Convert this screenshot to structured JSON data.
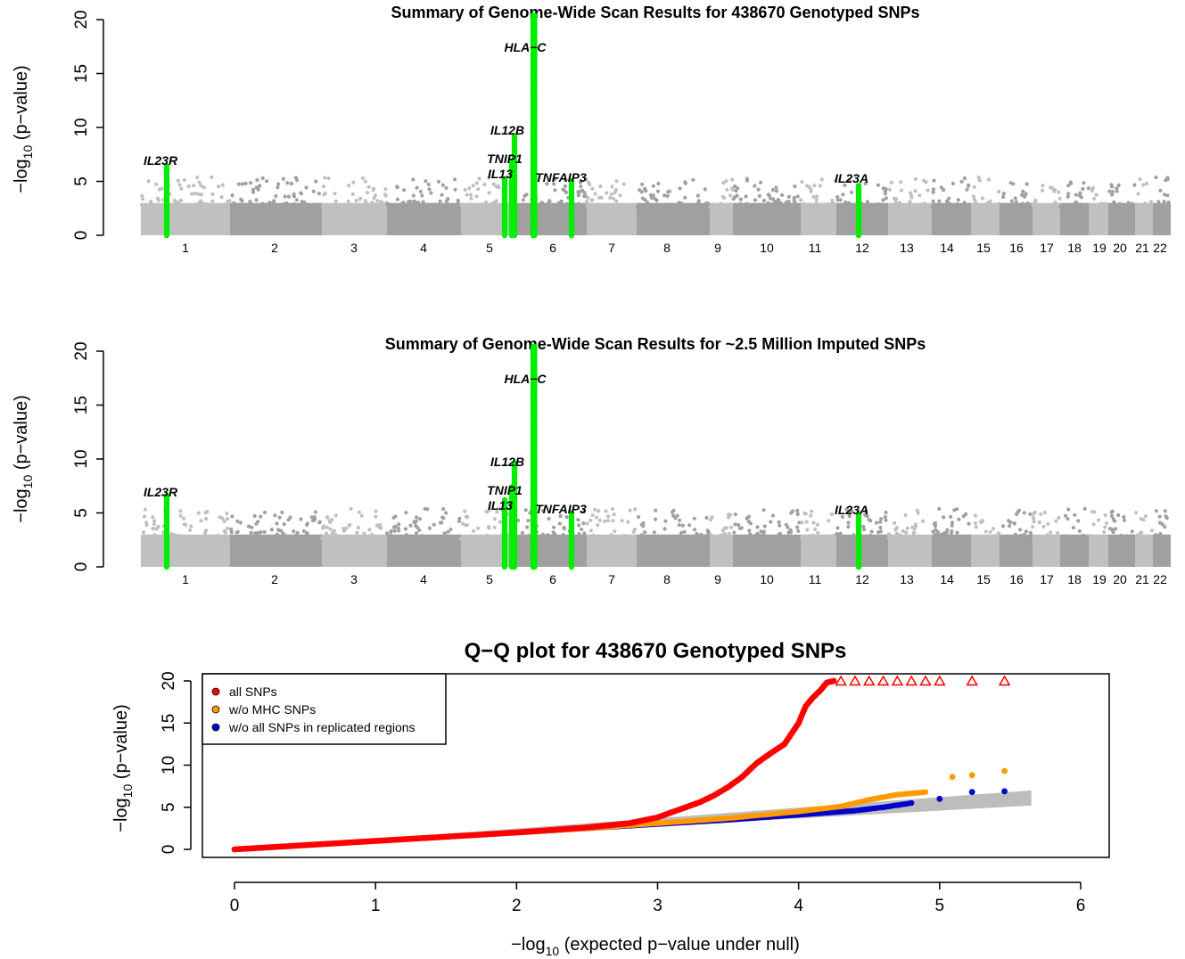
{
  "colors": {
    "chrom_light": "#c0c0c0",
    "chrom_dark": "#a0a0a0",
    "highlight": "#00ee00",
    "all_snps": "#ff0000",
    "wo_mhc": "#ff9900",
    "wo_replicated": "#0000cc",
    "null_band": "#bdbdbd"
  },
  "chart_data": [
    {
      "type": "scatter",
      "title": "Summary of Genome-Wide Scan Results for 438670 Genotyped SNPs",
      "ylabel": "−log10 (p−value)",
      "ylabel_main": "−log",
      "ylabel_sub": "10",
      "ylabel_tail": " (p−value)",
      "ylim": [
        0,
        20.5
      ],
      "yticks": [
        0,
        5,
        10,
        15,
        20
      ],
      "chromosomes": [
        "1",
        "2",
        "3",
        "4",
        "5",
        "6",
        "7",
        "8",
        "9",
        "10",
        "11",
        "12",
        "13",
        "14",
        "15",
        "16",
        "17",
        "18",
        "19",
        "20",
        "21",
        "22"
      ],
      "peaks": [
        {
          "gene": "IL23R",
          "chrom": "1",
          "max": 6.6
        },
        {
          "gene": "IL13",
          "chrom": "5",
          "max": 5.4
        },
        {
          "gene": "TNIP1",
          "chrom": "5",
          "max": 7.0
        },
        {
          "gene": "IL12B",
          "chrom": "5",
          "max": 9.3
        },
        {
          "gene": "HLA−C",
          "chrom": "6",
          "max": 20.5
        },
        {
          "gene": "TNFAIP3",
          "chrom": "6",
          "max": 5.1
        },
        {
          "gene": "IL23A",
          "chrom": "12",
          "max": 4.8
        }
      ]
    },
    {
      "type": "scatter",
      "title": "Summary of Genome-Wide Scan Results for ~2.5 Million Imputed SNPs",
      "ylabel": "−log10 (p−value)",
      "ylabel_main": "−log",
      "ylabel_sub": "10",
      "ylabel_tail": " (p−value)",
      "ylim": [
        0,
        20.5
      ],
      "yticks": [
        0,
        5,
        10,
        15,
        20
      ],
      "chromosomes": [
        "1",
        "2",
        "3",
        "4",
        "5",
        "6",
        "7",
        "8",
        "9",
        "10",
        "11",
        "12",
        "13",
        "14",
        "15",
        "16",
        "17",
        "18",
        "19",
        "20",
        "21",
        "22"
      ],
      "peaks": [
        {
          "gene": "IL23R",
          "chrom": "1",
          "max": 6.8
        },
        {
          "gene": "IL13",
          "chrom": "5",
          "max": 6.3
        },
        {
          "gene": "TNIP1",
          "chrom": "5",
          "max": 7.5
        },
        {
          "gene": "IL12B",
          "chrom": "5",
          "max": 9.6
        },
        {
          "gene": "HLA−C",
          "chrom": "6",
          "max": 20.5
        },
        {
          "gene": "TNFAIP3",
          "chrom": "6",
          "max": 5.2
        },
        {
          "gene": "IL23A",
          "chrom": "12",
          "max": 5.0
        }
      ]
    },
    {
      "type": "scatter",
      "title": "Q−Q plot for 438670 Genotyped SNPs",
      "xlabel": "−log10 (expected p−value under null)",
      "xlabel_main": "−log",
      "xlabel_sub": "10",
      "xlabel_tail": " (expected p−value under null)",
      "ylabel": "−log10 (p−value)",
      "ylabel_main": "−log",
      "ylabel_sub": "10",
      "ylabel_tail": " (p−value)",
      "xlim": [
        0,
        6
      ],
      "ylim": [
        0,
        20
      ],
      "xticks": [
        0,
        1,
        2,
        3,
        4,
        5,
        6
      ],
      "yticks": [
        0,
        5,
        10,
        15,
        20
      ],
      "legend_position": "top-left",
      "series": [
        {
          "name": "all SNPs",
          "color": "#ff0000",
          "points": [
            [
              0,
              0
            ],
            [
              0.5,
              0.5
            ],
            [
              1,
              1
            ],
            [
              1.5,
              1.5
            ],
            [
              2,
              2
            ],
            [
              2.5,
              2.6
            ],
            [
              2.8,
              3.1
            ],
            [
              3.0,
              3.8
            ],
            [
              3.1,
              4.4
            ],
            [
              3.2,
              5.0
            ],
            [
              3.3,
              5.6
            ],
            [
              3.4,
              6.4
            ],
            [
              3.5,
              7.4
            ],
            [
              3.6,
              8.6
            ],
            [
              3.7,
              10.2
            ],
            [
              3.8,
              11.4
            ],
            [
              3.9,
              12.5
            ],
            [
              4.0,
              15.0
            ],
            [
              4.05,
              17.0
            ],
            [
              4.1,
              18.0
            ],
            [
              4.15,
              18.8
            ],
            [
              4.2,
              19.8
            ],
            [
              4.25,
              20
            ]
          ],
          "censored_points": [
            [
              4.3,
              20
            ],
            [
              4.4,
              20
            ],
            [
              4.5,
              20
            ],
            [
              4.6,
              20
            ],
            [
              4.7,
              20
            ],
            [
              4.8,
              20
            ],
            [
              4.9,
              20
            ],
            [
              5.0,
              20
            ],
            [
              5.23,
              20
            ],
            [
              5.46,
              20
            ]
          ]
        },
        {
          "name": "w/o MHC SNPs",
          "color": "#ff9900",
          "points": [
            [
              2.0,
              2.0
            ],
            [
              2.5,
              2.5
            ],
            [
              3.0,
              3.1
            ],
            [
              3.5,
              3.7
            ],
            [
              4.0,
              4.5
            ],
            [
              4.3,
              5.1
            ],
            [
              4.5,
              5.9
            ],
            [
              4.7,
              6.5
            ],
            [
              4.9,
              6.8
            ],
            [
              5.09,
              8.6
            ],
            [
              5.23,
              8.8
            ],
            [
              5.46,
              9.3
            ]
          ]
        },
        {
          "name": "w/o all SNPs in replicated regions",
          "color": "#0000cc",
          "points": [
            [
              2.0,
              2.0
            ],
            [
              2.5,
              2.5
            ],
            [
              3.0,
              3.0
            ],
            [
              3.5,
              3.5
            ],
            [
              4.0,
              4.1
            ],
            [
              4.4,
              4.6
            ],
            [
              4.6,
              5.0
            ],
            [
              4.8,
              5.5
            ],
            [
              5.0,
              6.0
            ],
            [
              5.23,
              6.8
            ],
            [
              5.46,
              6.9
            ]
          ]
        }
      ],
      "null_band": {
        "x": [
          0,
          5.65
        ],
        "upper": [
          0,
          7.0
        ],
        "lower": [
          0,
          5.2
        ]
      }
    }
  ]
}
